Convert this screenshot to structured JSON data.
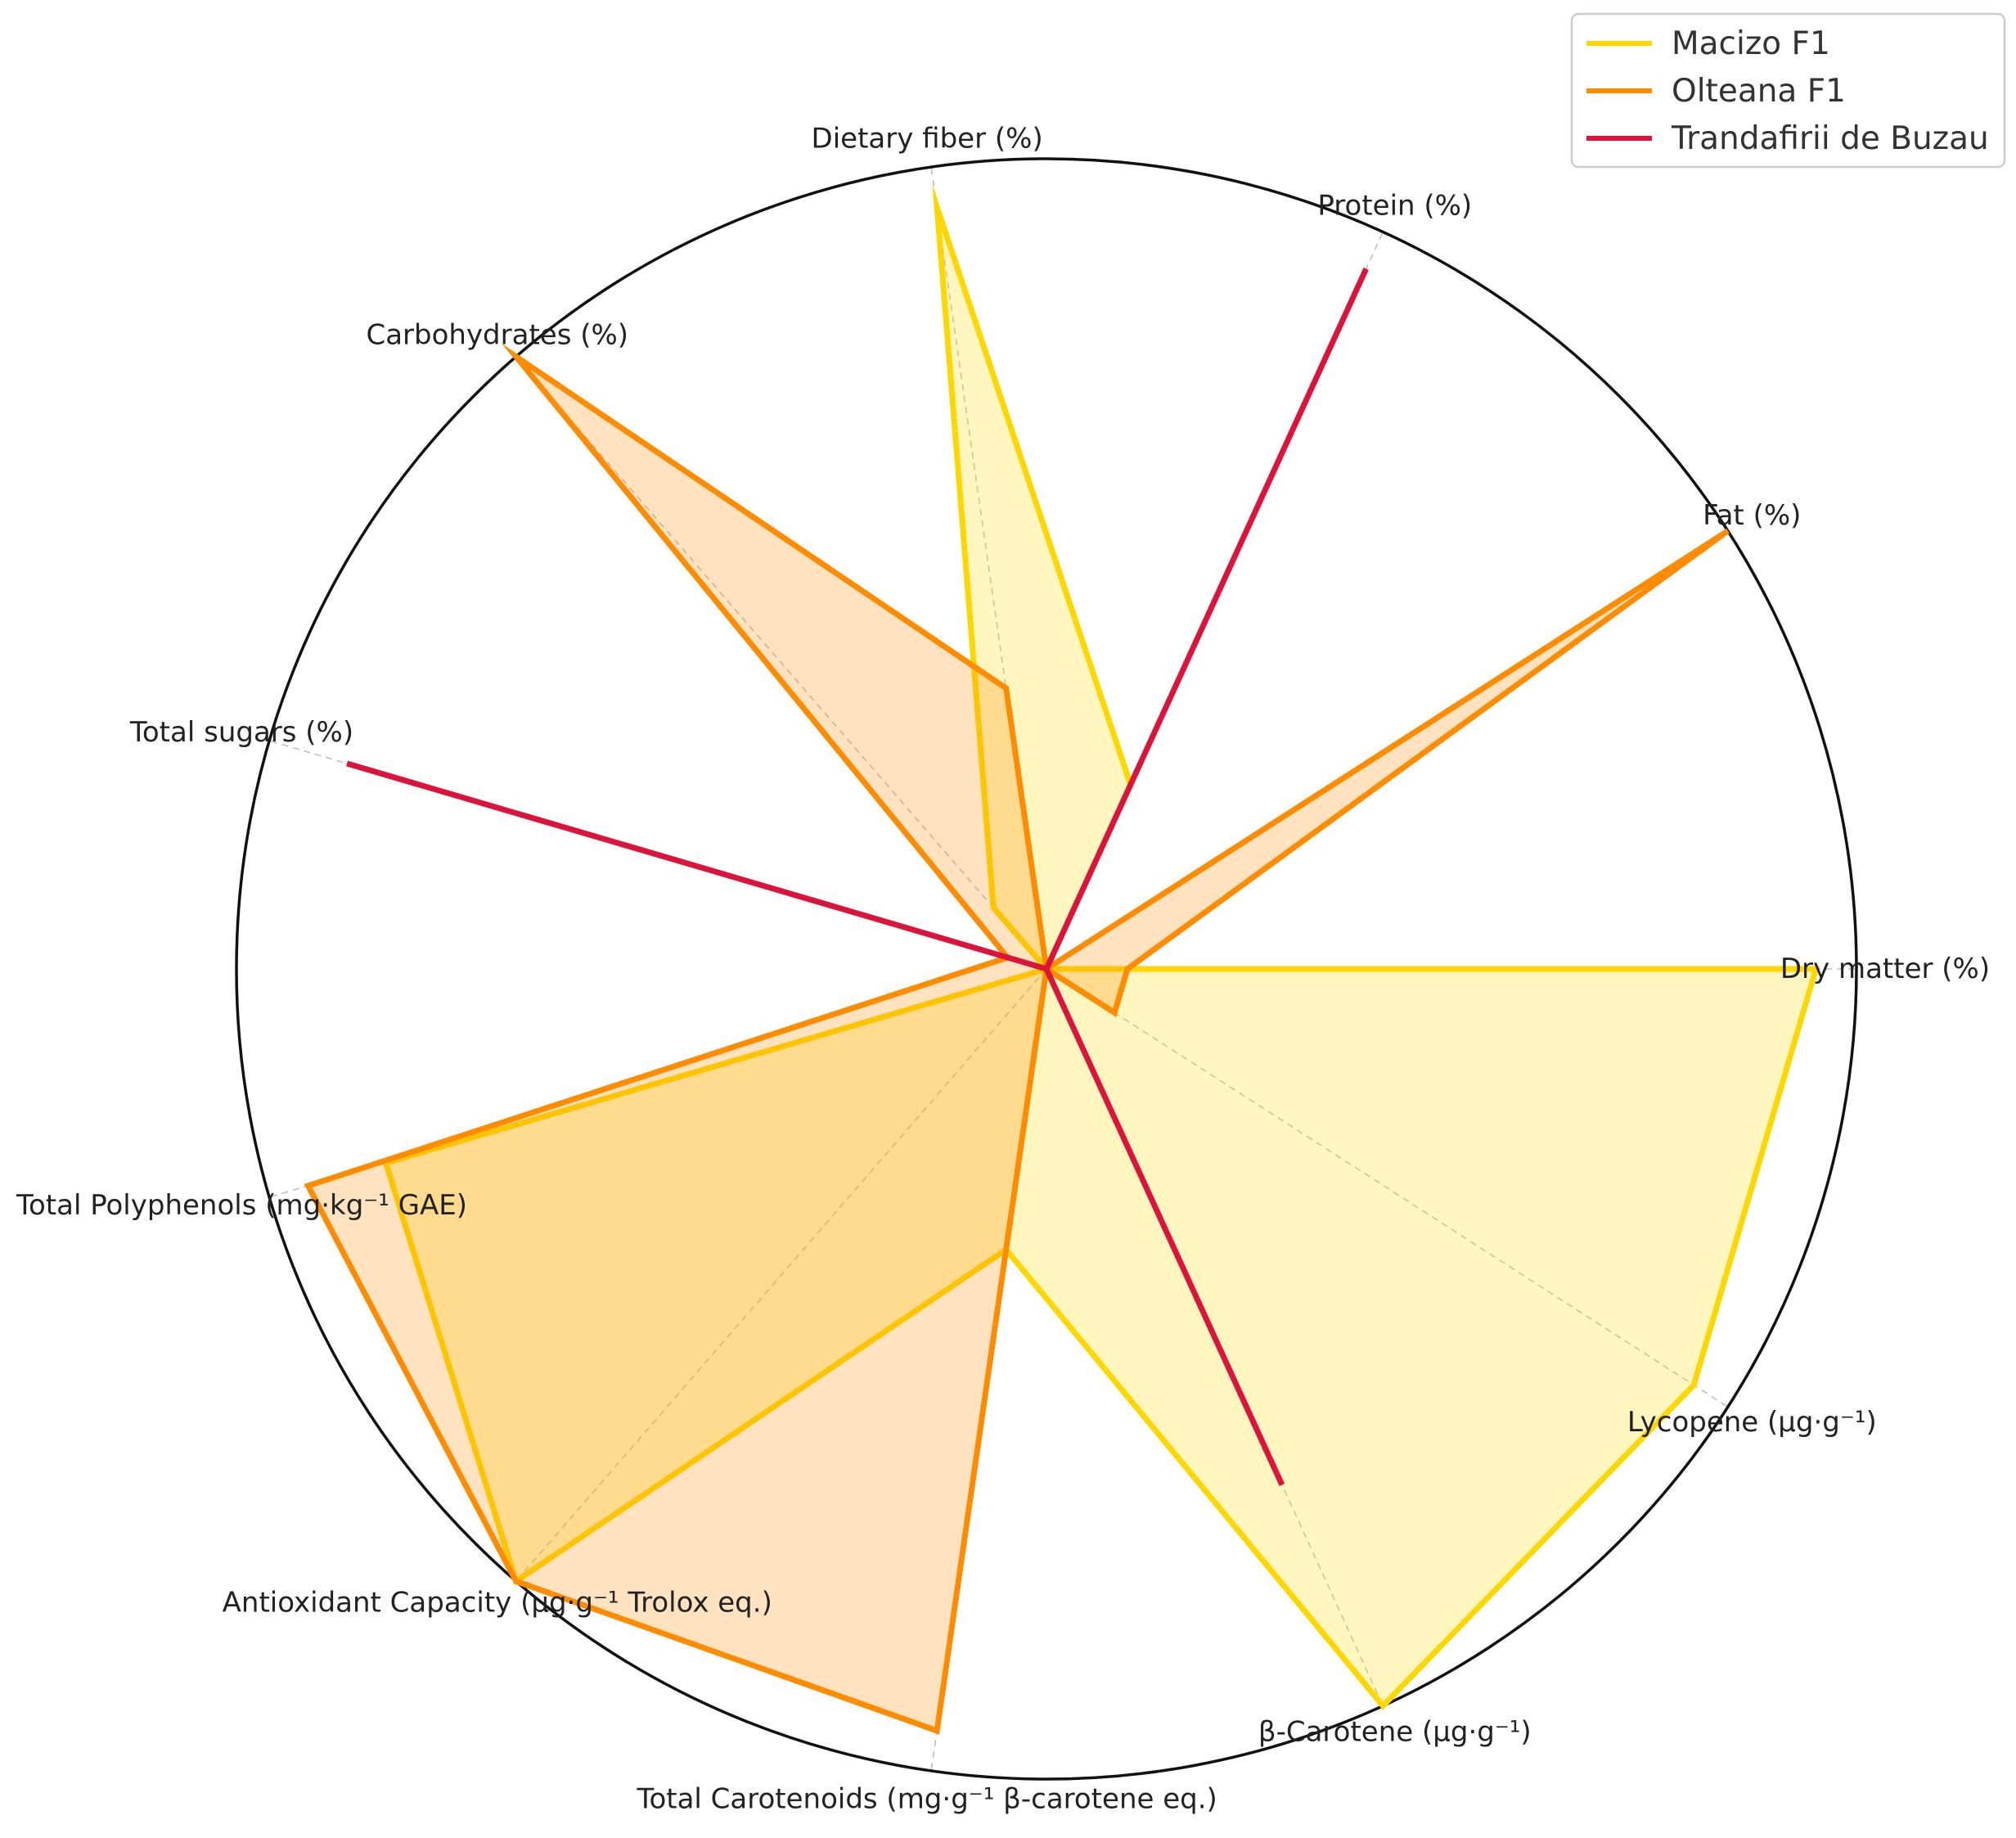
{
  "chart_data": {
    "type": "radar",
    "title": "",
    "categories": [
      "Dry matter (%)",
      "Fat (%)",
      "Protein (%)",
      "Dietary fiber (%)",
      "Carbohydrates (%)",
      "Total sugars (%)",
      "Total Polyphenols (mg·kg⁻¹ GAE)",
      "Antioxidant Capacity (μg·g⁻¹ Trolox eq.)",
      "Total Carotenoids (mg·g⁻¹ β-carotene eq.)",
      "β-Carotene (μg·g⁻¹)",
      "Lycopene (μg·g⁻¹)"
    ],
    "series": [
      {
        "name": "Macizo F1",
        "color": "#FFD700",
        "values": [
          0.95,
          0.0,
          0.25,
          0.95,
          0.1,
          0.0,
          0.85,
          1.0,
          0.35,
          1.0,
          0.95
        ]
      },
      {
        "name": "Olteana F1",
        "color": "#FF8C00",
        "values": [
          0.1,
          1.0,
          0.0,
          0.35,
          1.0,
          0.05,
          0.95,
          1.0,
          0.95,
          0.0,
          0.1
        ]
      },
      {
        "name": "Trandafirii de Buzau",
        "color": "#DC143C",
        "values": [
          0.0,
          0.0,
          0.95,
          0.0,
          0.0,
          0.9,
          0.0,
          0.0,
          0.0,
          0.7,
          0.0
        ]
      }
    ],
    "rlim": [
      0,
      1
    ],
    "grid": true,
    "legend_position": "top-right"
  }
}
